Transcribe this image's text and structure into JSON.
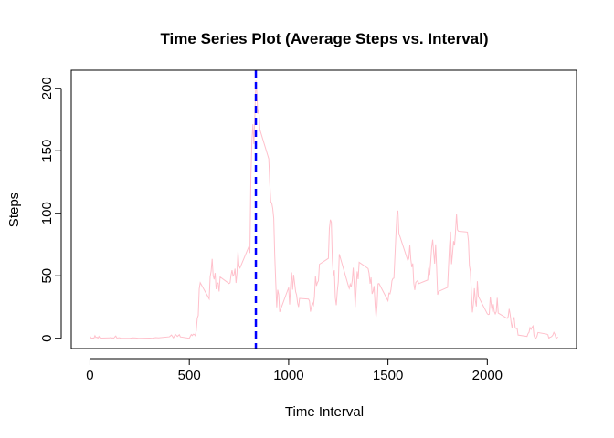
{
  "chart_data": {
    "type": "line",
    "title": "Time Series Plot (Average Steps vs. Interval)",
    "x_label": "Time Interval",
    "y_label": "Steps",
    "x": [
      0,
      5,
      10,
      15,
      20,
      25,
      30,
      35,
      40,
      45,
      50,
      55,
      100,
      105,
      110,
      115,
      120,
      125,
      130,
      135,
      140,
      145,
      150,
      155,
      200,
      215,
      230,
      245,
      300,
      315,
      330,
      345,
      400,
      410,
      420,
      430,
      440,
      450,
      455,
      500,
      505,
      510,
      515,
      520,
      525,
      530,
      535,
      540,
      545,
      550,
      555,
      600,
      605,
      610,
      615,
      620,
      625,
      630,
      635,
      640,
      645,
      650,
      655,
      700,
      705,
      710,
      715,
      720,
      725,
      730,
      735,
      740,
      745,
      750,
      755,
      800,
      805,
      810,
      815,
      820,
      825,
      830,
      835,
      840,
      845,
      850,
      855,
      900,
      905,
      910,
      915,
      920,
      925,
      930,
      935,
      940,
      945,
      950,
      955,
      1000,
      1005,
      1010,
      1015,
      1020,
      1025,
      1030,
      1035,
      1040,
      1045,
      1050,
      1055,
      1100,
      1105,
      1110,
      1115,
      1120,
      1125,
      1130,
      1135,
      1140,
      1145,
      1150,
      1155,
      1200,
      1205,
      1210,
      1215,
      1220,
      1225,
      1230,
      1235,
      1240,
      1245,
      1250,
      1255,
      1300,
      1305,
      1310,
      1315,
      1320,
      1325,
      1330,
      1335,
      1340,
      1345,
      1350,
      1355,
      1400,
      1405,
      1410,
      1415,
      1420,
      1425,
      1430,
      1435,
      1440,
      1445,
      1450,
      1455,
      1500,
      1505,
      1510,
      1515,
      1520,
      1525,
      1530,
      1535,
      1540,
      1545,
      1550,
      1555,
      1600,
      1605,
      1610,
      1615,
      1620,
      1625,
      1630,
      1635,
      1640,
      1645,
      1650,
      1655,
      1700,
      1705,
      1710,
      1715,
      1720,
      1725,
      1730,
      1735,
      1740,
      1745,
      1750,
      1755,
      1800,
      1805,
      1810,
      1815,
      1820,
      1825,
      1830,
      1835,
      1840,
      1845,
      1850,
      1855,
      1900,
      1905,
      1910,
      1915,
      1920,
      1925,
      1930,
      1935,
      1940,
      1945,
      1950,
      1955,
      2000,
      2005,
      2010,
      2015,
      2020,
      2025,
      2030,
      2035,
      2040,
      2045,
      2050,
      2055,
      2100,
      2105,
      2110,
      2115,
      2120,
      2125,
      2130,
      2135,
      2140,
      2145,
      2150,
      2155,
      2200,
      2205,
      2210,
      2215,
      2220,
      2225,
      2230,
      2235,
      2240,
      2245,
      2250,
      2255,
      2300,
      2305,
      2310,
      2315,
      2320,
      2325,
      2330,
      2335,
      2340,
      2345,
      2350,
      2355
    ],
    "values": [
      1.7,
      0.3,
      0.1,
      0.2,
      0.1,
      2.1,
      0.5,
      0.9,
      0,
      1.5,
      0.3,
      0.1,
      0.3,
      0.7,
      0.2,
      0.3,
      0,
      1.1,
      1.8,
      0.2,
      0.2,
      0.4,
      0.3,
      0,
      0,
      0.3,
      0.2,
      0,
      0.1,
      0,
      0.5,
      0.3,
      1.2,
      2.6,
      0.4,
      3.1,
      1.5,
      2.9,
      1.1,
      0,
      1.6,
      3,
      2.2,
      3.3,
      3,
      2.1,
      6.1,
      16,
      18.3,
      39.5,
      44.5,
      31.5,
      49.3,
      53.8,
      63.5,
      50,
      47.1,
      52.2,
      39.3,
      44,
      44.2,
      37.4,
      49,
      43.8,
      44.4,
      50.5,
      54.5,
      49.9,
      51,
      55.7,
      44.3,
      52.3,
      69.5,
      57.8,
      56.2,
      73.4,
      68.2,
      129.4,
      157.5,
      171.2,
      155.4,
      177.3,
      206.2,
      195.9,
      179.6,
      183.4,
      167,
      143.5,
      124,
      109.1,
      108.1,
      103.7,
      95.97,
      66.2,
      45.2,
      24.8,
      38.8,
      34.98,
      21.06,
      40.57,
      26.98,
      42.4,
      52.66,
      38.9,
      50.8,
      44.3,
      37.4,
      34.7,
      28.3,
      25.1,
      31.9,
      31.4,
      29.7,
      21.3,
      25.5,
      28.4,
      26.5,
      33.4,
      50,
      42,
      44.6,
      46,
      59.2,
      63.9,
      87.7,
      94.8,
      92.8,
      63.4,
      50.2,
      54.5,
      32.4,
      26.5,
      37.7,
      45.1,
      67.3,
      42.3,
      39.9,
      43.3,
      40.98,
      46.2,
      56.4,
      42.8,
      25.1,
      39.9,
      53.5,
      47.3,
      60.8,
      55.8,
      51.96,
      43.6,
      48.7,
      35.5,
      37.5,
      41.8,
      27.5,
      17.1,
      26.1,
      43.6,
      43.8,
      30,
      36.1,
      35.5,
      38.8,
      45.96,
      47.8,
      48.1,
      65.3,
      82.9,
      98.7,
      102.1,
      83.96,
      62.1,
      64.1,
      74.5,
      63.2,
      56.9,
      59.8,
      43.9,
      38.6,
      44.7,
      45.5,
      46.2,
      43.7,
      46.6,
      56.3,
      50.7,
      61.2,
      72.7,
      78.9,
      68.9,
      59.7,
      75.1,
      56.5,
      34.8,
      37.5,
      40.7,
      58,
      74.7,
      85.3,
      59.3,
      67.8,
      77.7,
      74.2,
      85.3,
      99.5,
      86.6,
      85.6,
      84.9,
      77.8,
      58,
      53.4,
      36.3,
      20.7,
      27.4,
      40,
      30.2,
      25.5,
      45.7,
      33.5,
      19.6,
      19,
      19.3,
      33.3,
      26.8,
      21.2,
      27.3,
      21.3,
      19.5,
      21.3,
      32.3,
      20.2,
      15.9,
      17.2,
      23.5,
      19.2,
      12.5,
      8,
      14.7,
      16.3,
      8.7,
      7.8,
      8.1,
      2.6,
      1.5,
      3.7,
      4.8,
      8.5,
      7.1,
      8.7,
      9.8,
      2.2,
      0.3,
      0.1,
      1.6,
      4.6,
      3.3,
      2.8,
      0,
      0.8,
      1,
      1.6,
      2.6,
      4.7,
      3.3,
      0.6,
      0.2,
      1.1
    ],
    "color": "#ffc0cb",
    "vline": {
      "x": 835,
      "color": "#0000ff"
    },
    "xlim": [
      -94.2,
      2449.2
    ],
    "ylim": [
      -8.25,
      214.42
    ],
    "xticks": [
      0,
      500,
      1000,
      1500,
      2000
    ],
    "yticks": [
      0,
      50,
      100,
      150,
      200
    ]
  }
}
